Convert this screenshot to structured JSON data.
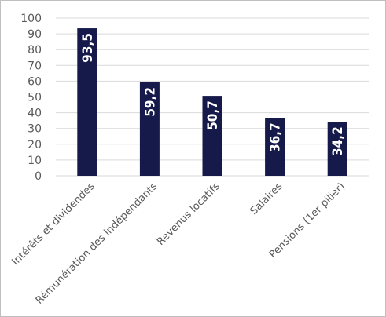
{
  "chart_data": {
    "type": "bar",
    "title": "",
    "xlabel": "",
    "ylabel": "",
    "categories": [
      "Intérêts et dividendes",
      "Rémunération des indépendants",
      "Revenus locatifs",
      "Salaires",
      "Pensions (1er pilier)"
    ],
    "values": [
      93.5,
      59.2,
      50.7,
      36.7,
      34.2
    ],
    "data_labels": [
      "93,5",
      "59,2",
      "50,7",
      "36,7",
      "34,2"
    ],
    "yticks": [
      "0",
      "10",
      "20",
      "30",
      "40",
      "50",
      "60",
      "70",
      "80",
      "90",
      "100"
    ],
    "ylim": [
      0,
      100
    ],
    "grid": true,
    "legend": "none",
    "colors": {
      "bar": "#161a4a",
      "grid": "#d9d9d9",
      "text": "#595959"
    }
  }
}
